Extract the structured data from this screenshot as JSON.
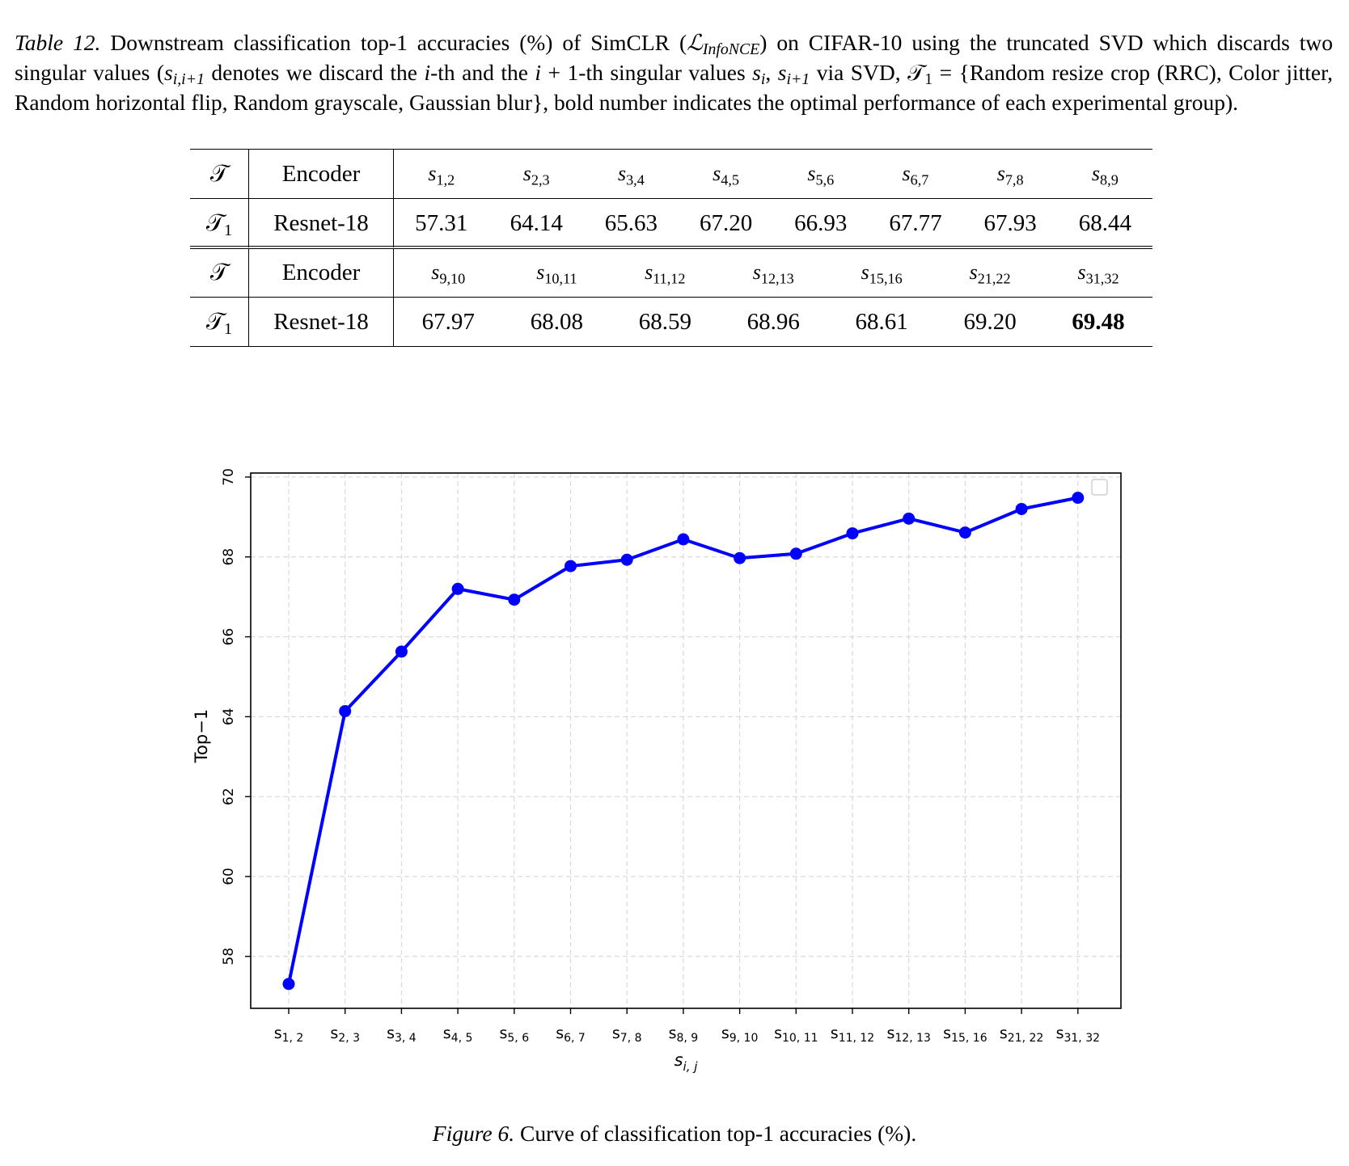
{
  "table_caption": {
    "label": "Table 12.",
    "text_1": " Downstream classification top-1 accuracies (%) of SimCLR (",
    "loss_symbol": "ℒ",
    "loss_sub": "InfoNCE",
    "text_2": ") on CIFAR-10 using the truncated SVD which discards two singular values (",
    "s_sym": "s",
    "s_sub_1": "i,i+1",
    "text_3": " denotes we discard the ",
    "i_1": "i",
    "text_4": "-th and the ",
    "i_2": "i",
    "text_5": " + 1-th singular values ",
    "s_sub_2": "i",
    "s_sub_3": "i+1",
    "text_6": " via SVD, ",
    "t_sym": "𝒯",
    "t_sub": "1",
    "text_7": " = {Random resize crop (RRC), Color jitter, Random horizontal flip, Random grayscale, Gaussian blur}, bold number indicates the optimal performance of each experimental group)."
  },
  "table": {
    "group_1": {
      "header": {
        "aug": "𝒯",
        "encoder": "Encoder",
        "cols": [
          {
            "s": "s",
            "sub": "1,2"
          },
          {
            "s": "s",
            "sub": "2,3"
          },
          {
            "s": "s",
            "sub": "3,4"
          },
          {
            "s": "s",
            "sub": "4,5"
          },
          {
            "s": "s",
            "sub": "5,6"
          },
          {
            "s": "s",
            "sub": "6,7"
          },
          {
            "s": "s",
            "sub": "7,8"
          },
          {
            "s": "s",
            "sub": "8,9"
          }
        ]
      },
      "row": {
        "aug": "𝒯",
        "aug_sub": "1",
        "encoder": "Resnet-18",
        "values": [
          "57.31",
          "64.14",
          "65.63",
          "67.20",
          "66.93",
          "67.77",
          "67.93",
          "68.44"
        ]
      }
    },
    "group_2": {
      "header": {
        "aug": "𝒯",
        "encoder": "Encoder",
        "cols": [
          {
            "s": "s",
            "sub": "9,10"
          },
          {
            "s": "s",
            "sub": "10,11"
          },
          {
            "s": "s",
            "sub": "11,12"
          },
          {
            "s": "s",
            "sub": "12,13"
          },
          {
            "s": "s",
            "sub": "15,16"
          },
          {
            "s": "s",
            "sub": "21,22"
          },
          {
            "s": "s",
            "sub": "31,32"
          }
        ]
      },
      "row": {
        "aug": "𝒯",
        "aug_sub": "1",
        "encoder": "Resnet-18",
        "values": [
          "67.97",
          "68.08",
          "68.59",
          "68.96",
          "68.61",
          "69.20",
          "69.48"
        ]
      }
    }
  },
  "chart_data": {
    "type": "line",
    "title": "",
    "xlabel": "s",
    "xlabel_sub": "i, j",
    "ylabel": "Top−1",
    "ylim": [
      56.7,
      70.1
    ],
    "yticks": [
      58,
      60,
      62,
      64,
      66,
      68,
      70
    ],
    "grid": true,
    "grid_style": "dashed",
    "legend": "top-right (empty box)",
    "line_color": "#0000ff",
    "categories": [
      {
        "s": "s",
        "sub": "1, 2"
      },
      {
        "s": "s",
        "sub": "2, 3"
      },
      {
        "s": "s",
        "sub": "3, 4"
      },
      {
        "s": "s",
        "sub": "4, 5"
      },
      {
        "s": "s",
        "sub": "5, 6"
      },
      {
        "s": "s",
        "sub": "6, 7"
      },
      {
        "s": "s",
        "sub": "7, 8"
      },
      {
        "s": "s",
        "sub": "8, 9"
      },
      {
        "s": "s",
        "sub": "9, 10"
      },
      {
        "s": "s",
        "sub": "10, 11"
      },
      {
        "s": "s",
        "sub": "11, 12"
      },
      {
        "s": "s",
        "sub": "12, 13"
      },
      {
        "s": "s",
        "sub": "15, 16"
      },
      {
        "s": "s",
        "sub": "21, 22"
      },
      {
        "s": "s",
        "sub": "31, 32"
      }
    ],
    "values": [
      57.31,
      64.14,
      65.63,
      67.2,
      66.93,
      67.77,
      67.93,
      68.44,
      67.97,
      68.08,
      68.59,
      68.96,
      68.61,
      69.2,
      69.48
    ]
  },
  "figure_caption": {
    "label": "Figure 6.",
    "text": " Curve of classification top-1 accuracies (%)."
  }
}
